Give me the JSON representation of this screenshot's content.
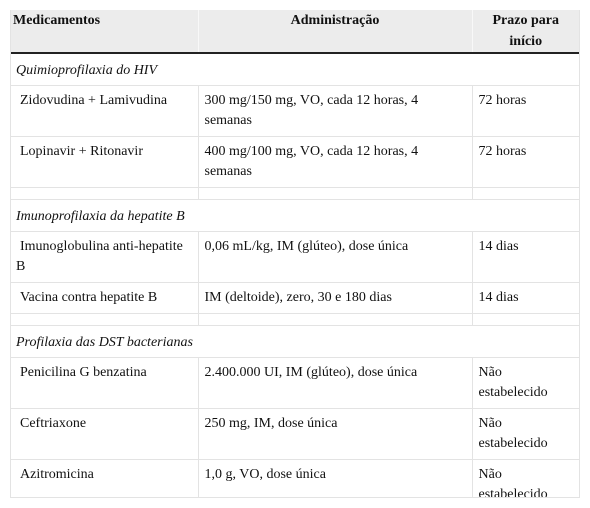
{
  "table": {
    "headers": {
      "medicamentos": "Medicamentos",
      "administracao": "Administração",
      "prazo": "Prazo para início"
    },
    "sections": [
      {
        "title": "Quimioprofilaxia do HIV",
        "rows": [
          {
            "medicamento": "Zidovudina + Lamivudina",
            "administracao": "300 mg/150 mg, VO, cada 12 horas, 4 semanas",
            "prazo": "72 horas"
          },
          {
            "medicamento": "Lopinavir + Ritonavir",
            "administracao": "400 mg/100 mg, VO, cada 12 horas, 4 semanas",
            "prazo": "72 horas"
          }
        ]
      },
      {
        "title": "Imunoprofilaxia da hepatite B",
        "rows": [
          {
            "medicamento": "Imunoglobulina anti-hepatite B",
            "administracao": "0,06 mL/kg, IM (glúteo), dose única",
            "prazo": "14 dias"
          },
          {
            "medicamento": "Vacina contra hepatite B",
            "administracao": "IM (deltoide), zero, 30 e 180 dias",
            "prazo": "14 dias"
          }
        ]
      },
      {
        "title": "Profilaxia das DST bacterianas",
        "rows": [
          {
            "medicamento": "Penicilina G benzatina",
            "administracao": "2.400.000 UI, IM (glúteo), dose única",
            "prazo": "Não estabelecido"
          },
          {
            "medicamento": "Ceftriaxone",
            "administracao": "250 mg, IM, dose única",
            "prazo": "Não estabelecido"
          },
          {
            "medicamento": "Azitromicina",
            "administracao": "1,0 g, VO, dose única",
            "prazo": "Não estabelecido"
          }
        ]
      }
    ]
  }
}
